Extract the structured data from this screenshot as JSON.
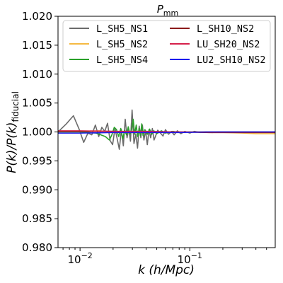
{
  "chart_data": {
    "type": "line",
    "title_main": "P",
    "title_sub": "mm",
    "xlabel": "k (h/Mpc)",
    "ylabel_main": "P(k)/P(k)",
    "ylabel_sub": "fiducial",
    "xscale": "log",
    "xlim": [
      0.0063,
      0.6
    ],
    "ylim": [
      0.98,
      1.02
    ],
    "yticks": [
      "0.980",
      "0.985",
      "0.990",
      "0.995",
      "1.000",
      "1.005",
      "1.010",
      "1.015",
      "1.020"
    ],
    "xticks": [
      {
        "value": 0.01,
        "base": "10",
        "exp": "−2"
      },
      {
        "value": 0.1,
        "base": "10",
        "exp": "−1"
      }
    ],
    "grid": false,
    "legend_placement": "top",
    "series": [
      {
        "name": "L_SH5_NS1",
        "color": "#6b6b6b",
        "x": [
          0.0063,
          0.0075,
          0.0087,
          0.0098,
          0.0108,
          0.0118,
          0.0128,
          0.0138,
          0.0148,
          0.0158,
          0.0168,
          0.0178,
          0.0188,
          0.0198,
          0.0208,
          0.0218,
          0.0228,
          0.0238,
          0.0248,
          0.0258,
          0.0268,
          0.0278,
          0.0288,
          0.0298,
          0.031,
          0.0322,
          0.0334,
          0.0346,
          0.0358,
          0.037,
          0.0382,
          0.0395,
          0.041,
          0.0425,
          0.044,
          0.0456,
          0.0472,
          0.049,
          0.051,
          0.054,
          0.057,
          0.06,
          0.064,
          0.068,
          0.072,
          0.077,
          0.083,
          0.09,
          0.1,
          0.11,
          0.125,
          0.14,
          0.16,
          0.18,
          0.21,
          0.25,
          0.3,
          0.36,
          0.44,
          0.52,
          0.6
        ],
        "y": [
          1.0,
          1.0014,
          1.0028,
          1.0005,
          0.9982,
          0.9998,
          0.9995,
          1.0012,
          0.9992,
          1.0008,
          1.0001,
          1.0015,
          0.9985,
          0.9978,
          1.0006,
          0.9988,
          0.997,
          1.0004,
          0.9976,
          1.0022,
          0.999,
          1.0005,
          0.9984,
          1.0038,
          0.998,
          0.9996,
          0.9972,
          1.001,
          0.999,
          1.0012,
          0.9986,
          1.0002,
          0.9978,
          1.0004,
          0.999,
          1.0006,
          0.9986,
          0.9994,
          1.0003,
          0.9998,
          0.9993,
          1.0004,
          0.9996,
          1.0001,
          0.9995,
          1.0002,
          0.9997,
          1.0001,
          0.9998,
          1.0001,
          0.9999,
          1.0,
          0.9999,
          1.0,
          1.0,
          1.0,
          1.0,
          1.0,
          1.0,
          1.0,
          1.0
        ]
      },
      {
        "name": "L_SH5_NS2",
        "color": "#f5b942",
        "x": [
          0.0063,
          0.01,
          0.015,
          0.02,
          0.025,
          0.03,
          0.04,
          0.05,
          0.07,
          0.1,
          0.15,
          0.2,
          0.3,
          0.4,
          0.6
        ],
        "y": [
          1.0001,
          1.0001,
          1.0002,
          0.9999,
          1.0001,
          0.9999,
          1.0001,
          0.9999,
          1.0,
          1.0,
          0.9999,
          0.9999,
          0.9998,
          0.9997,
          0.9997
        ]
      },
      {
        "name": "L_SH5_NS4",
        "color": "#2aa02a",
        "x": [
          0.0063,
          0.01,
          0.014,
          0.017,
          0.0185,
          0.0195,
          0.0205,
          0.0215,
          0.0225,
          0.0235,
          0.0245,
          0.0255,
          0.0265,
          0.0275,
          0.0285,
          0.0295,
          0.0305,
          0.0315,
          0.0325,
          0.0335,
          0.0345,
          0.0355,
          0.0365,
          0.0375,
          0.039,
          0.041,
          0.043,
          0.045,
          0.047,
          0.05,
          0.055,
          0.06,
          0.07,
          0.08,
          0.1,
          0.13,
          0.2,
          0.3,
          0.6
        ],
        "y": [
          1.0,
          1.0,
          0.9998,
          0.9992,
          0.9986,
          0.9995,
          1.0008,
          1.0004,
          0.9992,
          1.0006,
          0.9988,
          1.0003,
          0.9995,
          1.0009,
          0.9996,
          1.0004,
          1.0022,
          0.9996,
          1.0012,
          0.9992,
          1.0006,
          0.9994,
          1.0014,
          0.9994,
          1.0004,
          0.9996,
          1.0005,
          0.9996,
          1.0002,
          0.9997,
          1.0002,
          0.9998,
          1.0001,
          0.9999,
          1.0,
          1.0,
          1.0,
          1.0,
          1.0
        ]
      },
      {
        "name": "L_SH10_NS2",
        "color": "#8b1a1a",
        "x": [
          0.0063,
          0.01,
          0.02,
          0.04,
          0.08,
          0.15,
          0.3,
          0.6
        ],
        "y": [
          1.0001,
          1.0001,
          1.0001,
          1.0,
          1.0,
          0.9999,
          0.9999,
          0.9999
        ]
      },
      {
        "name": "LU_SH20_NS2",
        "color": "#d6204a",
        "x": [
          0.0063,
          0.01,
          0.02,
          0.04,
          0.08,
          0.15,
          0.3,
          0.6
        ],
        "y": [
          1.0002,
          1.0002,
          1.0001,
          1.0001,
          1.0,
          1.0,
          1.0,
          1.0
        ]
      },
      {
        "name": "LU2_SH10_NS2",
        "color": "#1a1aee",
        "x": [
          0.0063,
          0.01,
          0.02,
          0.04,
          0.08,
          0.15,
          0.3,
          0.6
        ],
        "y": [
          0.9998,
          0.9998,
          0.9999,
          0.9999,
          0.9999,
          1.0,
          1.0,
          1.0
        ]
      }
    ]
  }
}
